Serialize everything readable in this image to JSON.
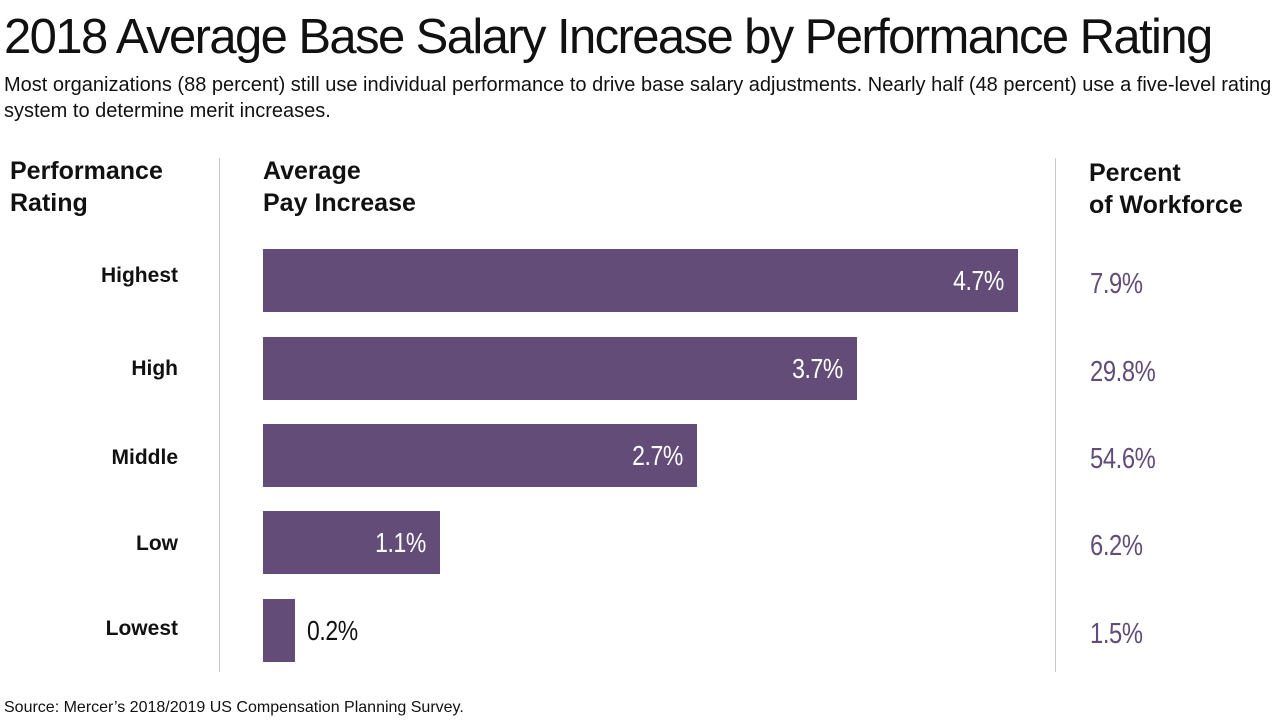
{
  "title": "2018 Average Base Salary Increase by Performance Rating",
  "subtitle": "Most organizations (88 percent) still use individual performance to drive base salary adjustments. Nearly half (48 percent) use a five-level rating system to determine merit increases.",
  "headers": {
    "rating_line1": "Performance",
    "rating_line2": "Rating",
    "increase_line1": "Average",
    "increase_line2": "Pay Increase",
    "workforce_line1": "Percent",
    "workforce_line2": "of Workforce"
  },
  "source": "Source: Mercer’s 2018/2019 US Compensation Planning Survey.",
  "colors": {
    "bar": "#634d78",
    "percent_text": "#634d78"
  },
  "chart_data": {
    "type": "bar",
    "orientation": "horizontal",
    "title": "2018 Average Base Salary Increase by Performance Rating",
    "xlabel": "Average Pay Increase",
    "ylabel": "Performance Rating",
    "xlim": [
      0,
      4.7
    ],
    "grid": false,
    "categories": [
      "Highest",
      "High",
      "Middle",
      "Low",
      "Lowest"
    ],
    "values": [
      4.7,
      3.7,
      2.7,
      1.1,
      0.2
    ],
    "value_labels": [
      "4.7%",
      "3.7%",
      "2.7%",
      "1.1%",
      "0.2%"
    ],
    "workforce_percent": [
      7.9,
      29.8,
      54.6,
      6.2,
      1.5
    ],
    "workforce_labels": [
      "7.9%",
      "29.8%",
      "54.6%",
      "6.2%",
      "1.5%"
    ]
  }
}
